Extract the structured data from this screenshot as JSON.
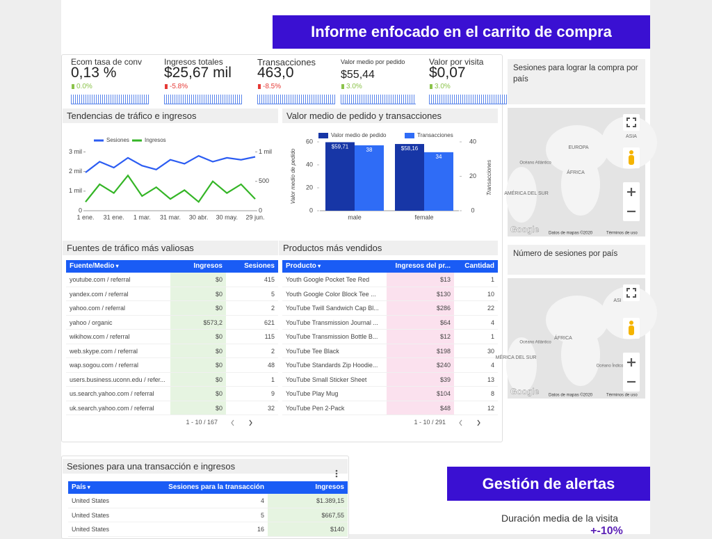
{
  "header": {
    "title": "Informe enfocado en el carrito de compra"
  },
  "kpis": [
    {
      "label": "Ecom tasa de conv",
      "value": "0,13 %",
      "change": "0.0%",
      "change_color": "#8bc34a"
    },
    {
      "label": "Ingresos totales",
      "value": "$25,67 mil",
      "change": "-5.8%",
      "change_color": "#e53935"
    },
    {
      "label": "Transacciones",
      "value": "463,0",
      "change": "-8.5%",
      "change_color": "#e53935"
    },
    {
      "label": "Valor medio por pedido",
      "value": "$55,44",
      "change": "3.0%",
      "change_color": "#8bc34a"
    },
    {
      "label": "Valor por visita",
      "value": "$0,07",
      "change": "3.0%",
      "change_color": "#8bc34a"
    }
  ],
  "chart_data": [
    {
      "type": "line",
      "title": "Tendencias de tráfico e ingresos",
      "categories": [
        "1 ene.",
        null,
        "31 ene.",
        null,
        "1 mar.",
        null,
        "31 mar.",
        null,
        "30 abr.",
        null,
        "30 may.",
        null,
        "29 jun."
      ],
      "series": [
        {
          "name": "Sesiones",
          "color": "#2b5cf2",
          "values": [
            1950,
            2500,
            2200,
            2700,
            2300,
            2100,
            2600,
            2400,
            2800,
            2500,
            2700,
            2600,
            2750
          ]
        },
        {
          "name": "Ingresos",
          "color": "#34b526",
          "axis": "y2",
          "values": [
            150,
            450,
            300,
            600,
            250,
            400,
            200,
            350,
            150,
            500,
            300,
            450,
            200
          ]
        }
      ],
      "ylim": [
        0,
        3300
      ],
      "yticks": [
        0,
        {
          "value": 1000,
          "label": "1 mil"
        },
        {
          "value": 2000,
          "label": "2 mil"
        },
        {
          "value": 3000,
          "label": "3 mil"
        }
      ],
      "y2lim": [
        0,
        1100
      ],
      "y2ticks": [
        0,
        500,
        {
          "value": 1000,
          "label": "1 mil"
        }
      ]
    },
    {
      "type": "bar",
      "title": "Valor medio de pedido y transacciones",
      "categories": [
        "male",
        "female"
      ],
      "series": [
        {
          "name": "Valor medio de pedido",
          "color": "#1736a6",
          "values": [
            59.71,
            58.16
          ],
          "value_labels": [
            "$59,71",
            "$58,16"
          ]
        },
        {
          "name": "Transacciones",
          "color": "#2f6cf6",
          "axis": "y2",
          "values": [
            38,
            34
          ]
        }
      ],
      "ylabel": "Valor medio de pedido",
      "y2label": "Transacciones",
      "ylim": [
        0,
        60
      ],
      "yticks": [
        0,
        20,
        40,
        60
      ],
      "y2lim": [
        0,
        40
      ],
      "y2ticks": [
        0,
        20,
        40
      ]
    }
  ],
  "tables": [
    {
      "title": "Fuentes de tráfico más valiosas",
      "columns": [
        "Fuente/Medio",
        "Ingresos",
        "Sesiones"
      ],
      "rows": [
        [
          "youtube.com / referral",
          "$0",
          "415"
        ],
        [
          "yandex.com / referral",
          "$0",
          "5"
        ],
        [
          "yahoo.com / referral",
          "$0",
          "2"
        ],
        [
          "yahoo / organic",
          "$573,2",
          "621"
        ],
        [
          "wikihow.com / referral",
          "$0",
          "115"
        ],
        [
          "web.skype.com / referral",
          "$0",
          "2"
        ],
        [
          "wap.sogou.com / referral",
          "$0",
          "48"
        ],
        [
          "users.business.uconn.edu / refer...",
          "$0",
          "1"
        ],
        [
          "us.search.yahoo.com / referral",
          "$0",
          "9"
        ],
        [
          "uk.search.yahoo.com / referral",
          "$0",
          "32"
        ]
      ],
      "pager": "1 - 10 / 167"
    },
    {
      "title": "Productos más vendidos",
      "columns": [
        "Producto",
        "Ingresos del pr...",
        "Cantidad"
      ],
      "rows": [
        [
          "Youth Google Pocket Tee Red",
          "$13",
          "1"
        ],
        [
          "Youth Google Color Block Tee ...",
          "$130",
          "10"
        ],
        [
          "YouTube Twill Sandwich Cap Bl...",
          "$286",
          "22"
        ],
        [
          "YouTube Transmission Journal ...",
          "$64",
          "4"
        ],
        [
          "YouTube Transmission Bottle B...",
          "$12",
          "1"
        ],
        [
          "YouTube Tee Black",
          "$198",
          "30"
        ],
        [
          "YouTube Standards Zip Hoodie...",
          "$240",
          "4"
        ],
        [
          "YouTube Small Sticker Sheet",
          "$39",
          "13"
        ],
        [
          "YouTube Play Mug",
          "$104",
          "8"
        ],
        [
          "YouTube Pen 2-Pack",
          "$48",
          "12"
        ]
      ],
      "pager": "1 - 10 / 291"
    },
    {
      "title": "Sesiones para una transacción e ingresos",
      "columns": [
        "País",
        "Sesiones para la transacción",
        "Ingresos"
      ],
      "rows": [
        [
          "United States",
          "4",
          "$1.389,15"
        ],
        [
          "United States",
          "5",
          "$667,55"
        ],
        [
          "United States",
          "16",
          "$140"
        ]
      ]
    }
  ],
  "maps": [
    {
      "title": "Sesiones para lograr la compra por país",
      "labels": [
        "ASIA",
        "EUROPA",
        "ÁFRICA",
        "Océano Atlántico",
        "AMÉRICA DEL SUR"
      ],
      "logo": "Google",
      "attribution": "Datos de mapas ©2020",
      "terms": "Términos de uso"
    },
    {
      "title": "Número de sesiones por país",
      "labels": [
        "ASI",
        "ÁFRICA",
        "MÉRICA DEL SUR",
        "Océano Atlántico",
        "Océano Índico"
      ],
      "logo": "Google",
      "attribution": "Datos de mapas ©2020",
      "terms": "Términos de uso"
    }
  ],
  "alerts": {
    "title": "Gestión de alertas",
    "metric": "Duración media de la visita",
    "change": "+-10%"
  }
}
